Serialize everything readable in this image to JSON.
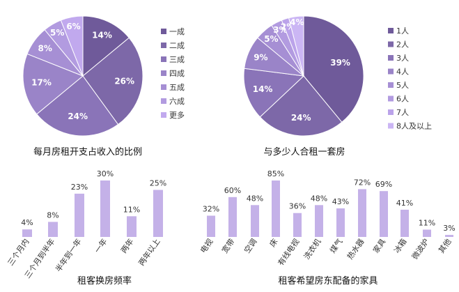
{
  "chart_data": [
    {
      "type": "pie",
      "title": "每月房租开支占收入的比例",
      "categories": [
        "一成",
        "二成",
        "三成",
        "四成",
        "五成",
        "六成",
        "更多"
      ],
      "values": [
        14,
        26,
        24,
        17,
        8,
        5,
        6
      ],
      "labels": [
        "14%",
        "26%",
        "24%",
        "17%",
        "8%",
        "5%",
        "6%"
      ],
      "colors": [
        "#6f5a9a",
        "#7d68a8",
        "#8a74b8",
        "#9a84c8",
        "#a68fd4",
        "#b29be0",
        "#c1a9ee"
      ],
      "legend_position": "right"
    },
    {
      "type": "pie",
      "title": "与多少人合租一套房",
      "categories": [
        "1人",
        "2人",
        "3人",
        "4人",
        "5人",
        "6人",
        "7人",
        "8人及以上"
      ],
      "values": [
        39,
        24,
        14,
        9,
        5,
        3,
        2,
        4
      ],
      "labels": [
        "39%",
        "24%",
        "14%",
        "9%",
        "5%",
        "3%",
        "2%",
        "4%"
      ],
      "colors": [
        "#6f5a9a",
        "#7d68a8",
        "#8a74b8",
        "#9a84c8",
        "#a68fd4",
        "#b29be0",
        "#bba3ea",
        "#cbb6f4"
      ],
      "legend_position": "right"
    },
    {
      "type": "bar",
      "title": "租客换房频率",
      "categories": [
        "三个月内",
        "三个月到半年",
        "半年到一年",
        "一年",
        "两年",
        "两年以上"
      ],
      "values": [
        4,
        8,
        23,
        30,
        11,
        25
      ],
      "labels": [
        "4%",
        "8%",
        "23%",
        "30%",
        "11%",
        "25%"
      ],
      "color": "#c4b1e8"
    },
    {
      "type": "bar",
      "title": "租客希望房东配备的家具",
      "categories": [
        "电视",
        "宽带",
        "空调",
        "床",
        "有线电视",
        "洗衣机",
        "煤气",
        "热水器",
        "家具",
        "冰箱",
        "微波炉",
        "其他"
      ],
      "values": [
        32,
        60,
        48,
        85,
        36,
        48,
        43,
        72,
        69,
        41,
        11,
        3
      ],
      "labels": [
        "32%",
        "60%",
        "48%",
        "85%",
        "36%",
        "48%",
        "43%",
        "72%",
        "69%",
        "41%",
        "11%",
        "3%"
      ],
      "color": "#c4b1e8"
    }
  ]
}
